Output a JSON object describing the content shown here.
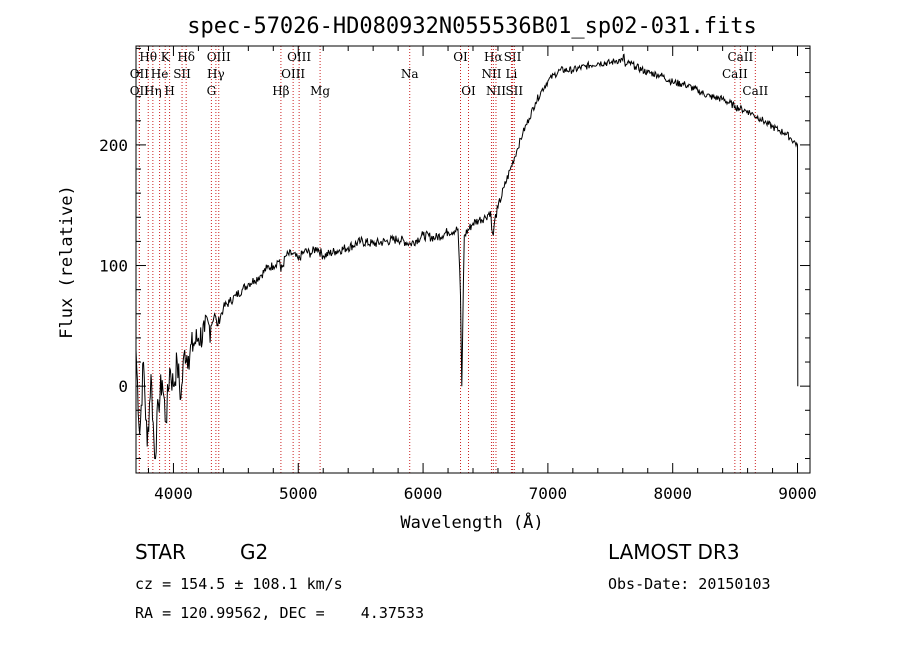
{
  "chart_data": {
    "type": "line",
    "title": "spec-57026-HD080932N055536B01_sp02-031.fits",
    "xlabel": "Wavelength (Å)",
    "ylabel": "Flux (relative)",
    "xlim": [
      3700,
      9100
    ],
    "ylim": [
      -72,
      282
    ],
    "xticks": [
      4000,
      5000,
      6000,
      7000,
      8000,
      9000
    ],
    "yticks": [
      0,
      100,
      200
    ],
    "series": [
      {
        "name": "spectrum",
        "x": [
          3700,
          3730,
          3760,
          3790,
          3820,
          3850,
          3880,
          3910,
          3940,
          3970,
          4000,
          4030,
          4060,
          4090,
          4120,
          4160,
          4200,
          4250,
          4300,
          4330,
          4350,
          4400,
          4450,
          4500,
          4550,
          4600,
          4650,
          4700,
          4750,
          4800,
          4850,
          4861,
          4900,
          4950,
          5000,
          5050,
          5100,
          5150,
          5200,
          5300,
          5400,
          5500,
          5600,
          5700,
          5800,
          5900,
          6000,
          6100,
          6200,
          6280,
          6300,
          6310,
          6330,
          6400,
          6450,
          6500,
          6540,
          6550,
          6563,
          6575,
          6600,
          6650,
          6700,
          6750,
          6800,
          6850,
          6900,
          6950,
          7000,
          7050,
          7100,
          7200,
          7300,
          7400,
          7500,
          7550,
          7600,
          7610,
          7620,
          7650,
          7700,
          7800,
          7900,
          8000,
          8100,
          8200,
          8300,
          8400,
          8500,
          8540,
          8600,
          8650,
          8700,
          8750,
          8800,
          8850,
          8900,
          8950,
          9000,
          9002
        ],
        "y": [
          30,
          -40,
          20,
          -50,
          10,
          -60,
          -15,
          5,
          -30,
          15,
          0,
          20,
          -10,
          30,
          25,
          35,
          40,
          45,
          50,
          60,
          50,
          65,
          70,
          75,
          80,
          85,
          88,
          92,
          98,
          100,
          105,
          95,
          108,
          110,
          105,
          112,
          110,
          115,
          108,
          112,
          115,
          120,
          118,
          120,
          122,
          118,
          125,
          123,
          128,
          130,
          75,
          0,
          125,
          135,
          138,
          140,
          145,
          130,
          125,
          138,
          148,
          165,
          180,
          195,
          210,
          222,
          235,
          245,
          253,
          258,
          262,
          262,
          265,
          268,
          268,
          270,
          270,
          275,
          265,
          268,
          265,
          260,
          258,
          252,
          250,
          245,
          240,
          238,
          232,
          230,
          228,
          225,
          222,
          218,
          215,
          212,
          210,
          205,
          200,
          0
        ]
      }
    ],
    "lines": [
      {
        "label": "Hθ",
        "x": 3798,
        "row": 0
      },
      {
        "label": "OII",
        "x": 3727,
        "row": 1
      },
      {
        "label": "OII",
        "x": 3727,
        "row": 2
      },
      {
        "label": "Hη",
        "x": 3835,
        "row": 2
      },
      {
        "label": "K",
        "x": 3934,
        "row": 0
      },
      {
        "label": "He",
        "x": 3889,
        "row": 1
      },
      {
        "label": "H",
        "x": 3969,
        "row": 2
      },
      {
        "label": "Hδ",
        "x": 4102,
        "row": 0
      },
      {
        "label": "SII",
        "x": 4069,
        "row": 1
      },
      {
        "label": "OIII",
        "x": 4363,
        "row": 0
      },
      {
        "label": "Hγ",
        "x": 4340,
        "row": 1
      },
      {
        "label": "G",
        "x": 4304,
        "row": 2
      },
      {
        "label": "Hβ",
        "x": 4861,
        "row": 2
      },
      {
        "label": "OIII",
        "x": 5007,
        "row": 0
      },
      {
        "label": "OIII",
        "x": 4959,
        "row": 1
      },
      {
        "label": "Mg",
        "x": 5175,
        "row": 2
      },
      {
        "label": "Na",
        "x": 5893,
        "row": 1
      },
      {
        "label": "OI",
        "x": 6300,
        "row": 0
      },
      {
        "label": "OI",
        "x": 6364,
        "row": 2
      },
      {
        "label": "Hα",
        "x": 6563,
        "row": 0
      },
      {
        "label": "SII",
        "x": 6717,
        "row": 0
      },
      {
        "label": "NII",
        "x": 6548,
        "row": 1
      },
      {
        "label": "Li",
        "x": 6708,
        "row": 1
      },
      {
        "label": "NII",
        "x": 6584,
        "row": 2
      },
      {
        "label": "SII",
        "x": 6731,
        "row": 2
      },
      {
        "label": "CaII",
        "x": 8542,
        "row": 0
      },
      {
        "label": "CaII",
        "x": 8498,
        "row": 1
      },
      {
        "label": "CaII",
        "x": 8662,
        "row": 2
      }
    ]
  },
  "info": {
    "object_class": "STAR",
    "subclass": "G2",
    "survey": "LAMOST DR3",
    "redshift": "cz = 154.5 ± 108.1 km/s",
    "obs_date": "Obs-Date: 20150103",
    "coords": "RA = 120.99562, DEC =    4.37533"
  }
}
